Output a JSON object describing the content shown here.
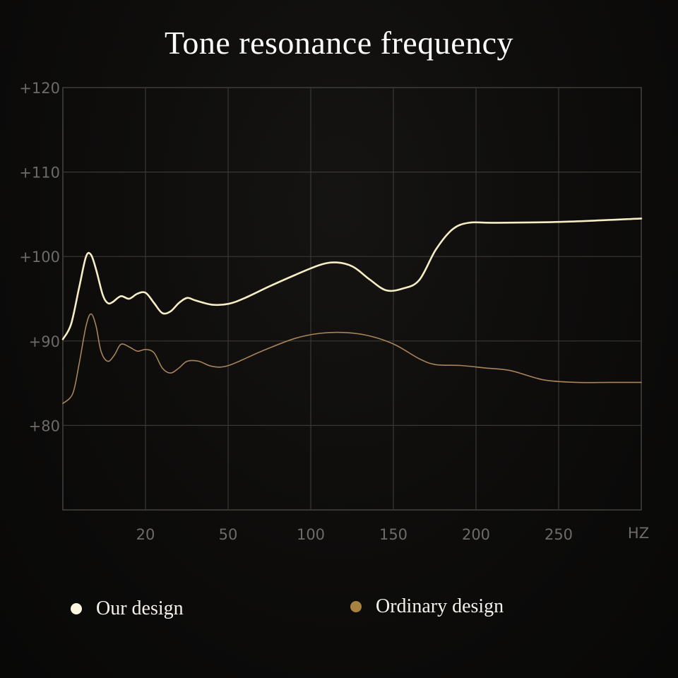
{
  "chart_data": {
    "type": "line",
    "title": "Tone resonance frequency",
    "xlabel": "HZ",
    "ylabel": "",
    "x_ticks": [
      {
        "value": 20,
        "label": "20"
      },
      {
        "value": 50,
        "label": "50"
      },
      {
        "value": 100,
        "label": "100"
      },
      {
        "value": 150,
        "label": "150"
      },
      {
        "value": 200,
        "label": "200"
      },
      {
        "value": 250,
        "label": "250"
      }
    ],
    "x_unit_label": "HZ",
    "y_ticks": [
      {
        "value": 120,
        "label": "+120"
      },
      {
        "value": 110,
        "label": "+110"
      },
      {
        "value": 100,
        "label": "+100"
      },
      {
        "value": 90,
        "label": "+90"
      },
      {
        "value": 80,
        "label": "+80"
      }
    ],
    "ylim": [
      70,
      120
    ],
    "grid": true,
    "legend_placement": "bottom",
    "series": [
      {
        "name": "Our design",
        "color": "#f6edc4",
        "points": [
          [
            0,
            90.2
          ],
          [
            5,
            92
          ],
          [
            10,
            96.5
          ],
          [
            14,
            100
          ],
          [
            17,
            100.2
          ],
          [
            20,
            98.5
          ],
          [
            24,
            95.5
          ],
          [
            27,
            94.5
          ],
          [
            30,
            94.6
          ],
          [
            35,
            95.3
          ],
          [
            40,
            95
          ],
          [
            45,
            95.6
          ],
          [
            50,
            95.7
          ],
          [
            55,
            94.5
          ],
          [
            60,
            93.3
          ],
          [
            65,
            93.5
          ],
          [
            70,
            94.5
          ],
          [
            75,
            95.1
          ],
          [
            80,
            94.8
          ],
          [
            90,
            94.3
          ],
          [
            100,
            94.4
          ],
          [
            110,
            95.1
          ],
          [
            125,
            96.5
          ],
          [
            140,
            97.8
          ],
          [
            155,
            99
          ],
          [
            165,
            99.3
          ],
          [
            175,
            98.8
          ],
          [
            185,
            97.3
          ],
          [
            195,
            96
          ],
          [
            205,
            96.2
          ],
          [
            215,
            97.2
          ],
          [
            225,
            100.8
          ],
          [
            235,
            103.2
          ],
          [
            245,
            104
          ],
          [
            260,
            104
          ],
          [
            300,
            104.1
          ],
          [
            349,
            104.5
          ]
        ]
      },
      {
        "name": "Ordinary design",
        "color": "#a8845a",
        "points": [
          [
            0,
            82.6
          ],
          [
            6,
            83.8
          ],
          [
            10,
            87.5
          ],
          [
            14,
            91.8
          ],
          [
            17,
            93.2
          ],
          [
            20,
            91.8
          ],
          [
            23,
            88.8
          ],
          [
            27,
            87.6
          ],
          [
            31,
            88.3
          ],
          [
            35,
            89.6
          ],
          [
            40,
            89.3
          ],
          [
            45,
            88.8
          ],
          [
            50,
            89
          ],
          [
            55,
            88.6
          ],
          [
            60,
            86.8
          ],
          [
            65,
            86.2
          ],
          [
            70,
            86.8
          ],
          [
            75,
            87.6
          ],
          [
            82,
            87.6
          ],
          [
            90,
            87
          ],
          [
            100,
            87.1
          ],
          [
            120,
            88.8
          ],
          [
            140,
            90.3
          ],
          [
            155,
            90.9
          ],
          [
            170,
            91
          ],
          [
            185,
            90.6
          ],
          [
            200,
            89.6
          ],
          [
            215,
            87.9
          ],
          [
            225,
            87.2
          ],
          [
            240,
            87.1
          ],
          [
            255,
            86.8
          ],
          [
            270,
            86.5
          ],
          [
            290,
            85.4
          ],
          [
            310,
            85.1
          ],
          [
            330,
            85.1
          ],
          [
            349,
            85.1
          ]
        ]
      }
    ]
  },
  "legend": [
    {
      "label": "Our design",
      "color": "#fbf6df"
    },
    {
      "label": "Ordinary design",
      "color": "#a8823f"
    }
  ]
}
